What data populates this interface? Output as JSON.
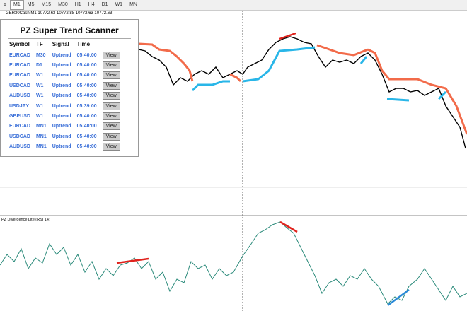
{
  "toolbar": {
    "tools": [
      "A"
    ],
    "timeframes": [
      "M1",
      "M5",
      "M15",
      "M30",
      "H1",
      "H4",
      "D1",
      "W1",
      "MN"
    ]
  },
  "chart": {
    "symbol_info": "GER30Cash,M1  10772.63 10772.88 10772.63 10772.63"
  },
  "scanner": {
    "title": "PZ Super Trend Scanner",
    "columns": [
      "Symbol",
      "TF",
      "Signal",
      "Time"
    ],
    "rows": [
      [
        "EURCAD",
        "M30",
        "Uptrend",
        "05:40:00",
        "View"
      ],
      [
        "EURCAD",
        "D1",
        "Uptrend",
        "05:40:00",
        "View"
      ],
      [
        "EURCAD",
        "W1",
        "Uptrend",
        "05:40:00",
        "View"
      ],
      [
        "USDCAD",
        "W1",
        "Uptrend",
        "05:40:00",
        "View"
      ],
      [
        "AUDUSD",
        "W1",
        "Uptrend",
        "05:40:00",
        "View"
      ],
      [
        "USDJPY",
        "W1",
        "Uptrend",
        "05:39:00",
        "View"
      ],
      [
        "GBPUSD",
        "W1",
        "Uptrend",
        "05:40:00",
        "View"
      ],
      [
        "EURCAD",
        "MN1",
        "Uptrend",
        "05:40:00",
        "View"
      ],
      [
        "USDCAD",
        "MN1",
        "Uptrend",
        "05:40:00",
        "View"
      ],
      [
        "AUDUSD",
        "MN1",
        "Uptrend",
        "05:40:00",
        "View"
      ]
    ]
  },
  "indicator": {
    "label": "PZ Divergence Lite (RSI 14)"
  }
}
